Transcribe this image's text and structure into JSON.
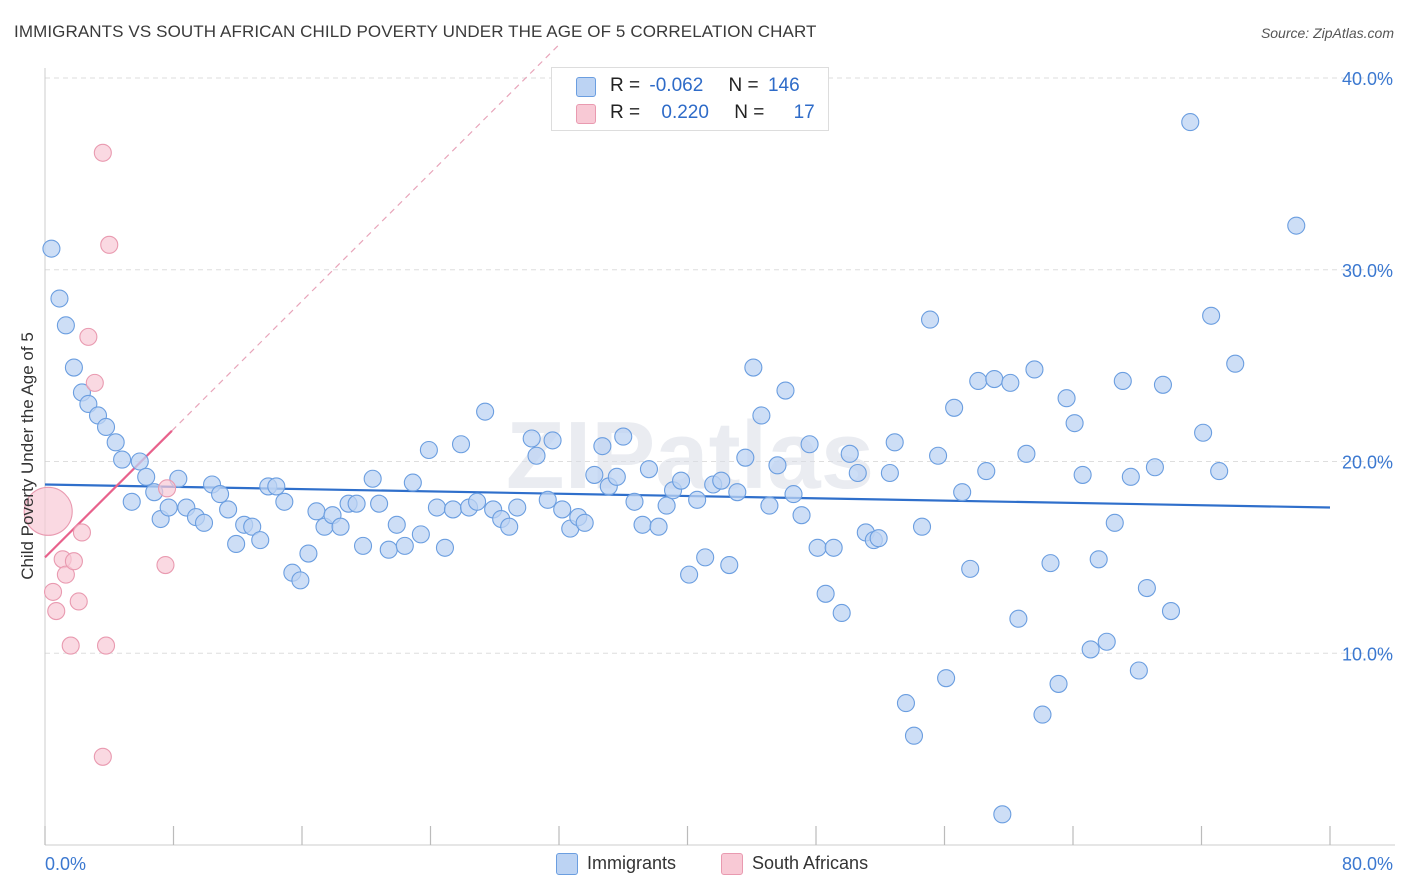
{
  "header": {
    "title": "IMMIGRANTS VS SOUTH AFRICAN CHILD POVERTY UNDER THE AGE OF 5 CORRELATION CHART",
    "source": "Source: ZipAtlas.com"
  },
  "legend": {
    "rows": [
      {
        "r_label": "R =",
        "r_value": "-0.062",
        "n_label": "N =",
        "n_value": "146"
      },
      {
        "r_label": "R =",
        "r_value": "0.220",
        "n_label": "N =",
        "n_value": "17"
      }
    ]
  },
  "bottom_legend": {
    "immigrants": "Immigrants",
    "south_africans": "South Africans"
  },
  "watermark": "ZIPatlas",
  "colors": {
    "immigrants_fill": "#bcd3f3",
    "immigrants_stroke": "#6b9ee0",
    "immigrants_line": "#2f6fcb",
    "sa_fill": "#f8c9d5",
    "sa_stroke": "#e99ab0",
    "sa_line": "#e8628c",
    "axis_text": "#3b78d0",
    "grid": "#dedede"
  },
  "chart_data": {
    "type": "scatter",
    "title": "IMMIGRANTS VS SOUTH AFRICAN CHILD POVERTY UNDER THE AGE OF 5 CORRELATION CHART",
    "xlabel": "",
    "ylabel": "Child Poverty Under the Age of 5",
    "xlim": [
      0,
      80
    ],
    "ylim": [
      0,
      40
    ],
    "x_tick_labels": [
      "0.0%",
      "80.0%"
    ],
    "y_tick_labels": [
      "10.0%",
      "20.0%",
      "30.0%",
      "40.0%"
    ],
    "y_ticks": [
      10,
      20,
      30,
      40
    ],
    "grid": true,
    "legend_placement": "top-center",
    "series": [
      {
        "name": "Immigrants",
        "R": -0.062,
        "N": 146,
        "trend": [
          [
            0,
            18.8
          ],
          [
            80,
            17.6
          ]
        ],
        "points": [
          [
            0.4,
            31.1
          ],
          [
            0.9,
            28.5
          ],
          [
            1.3,
            27.1
          ],
          [
            1.8,
            24.9
          ],
          [
            2.3,
            23.6
          ],
          [
            2.7,
            23.0
          ],
          [
            3.3,
            22.4
          ],
          [
            3.8,
            21.8
          ],
          [
            4.4,
            21.0
          ],
          [
            4.8,
            20.1
          ],
          [
            5.4,
            17.9
          ],
          [
            5.9,
            20.0
          ],
          [
            6.3,
            19.2
          ],
          [
            6.8,
            18.4
          ],
          [
            7.2,
            17.0
          ],
          [
            7.7,
            17.6
          ],
          [
            8.3,
            19.1
          ],
          [
            8.8,
            17.6
          ],
          [
            9.4,
            17.1
          ],
          [
            9.9,
            16.8
          ],
          [
            10.4,
            18.8
          ],
          [
            10.9,
            18.3
          ],
          [
            11.4,
            17.5
          ],
          [
            11.9,
            15.7
          ],
          [
            12.4,
            16.7
          ],
          [
            12.9,
            16.6
          ],
          [
            13.4,
            15.9
          ],
          [
            13.9,
            18.7
          ],
          [
            14.4,
            18.7
          ],
          [
            14.9,
            17.9
          ],
          [
            15.4,
            14.2
          ],
          [
            15.9,
            13.8
          ],
          [
            16.4,
            15.2
          ],
          [
            16.9,
            17.4
          ],
          [
            17.4,
            16.6
          ],
          [
            17.9,
            17.2
          ],
          [
            18.4,
            16.6
          ],
          [
            18.9,
            17.8
          ],
          [
            19.4,
            17.8
          ],
          [
            19.8,
            15.6
          ],
          [
            20.4,
            19.1
          ],
          [
            20.8,
            17.8
          ],
          [
            21.4,
            15.4
          ],
          [
            21.9,
            16.7
          ],
          [
            22.4,
            15.6
          ],
          [
            22.9,
            18.9
          ],
          [
            23.4,
            16.2
          ],
          [
            23.9,
            20.6
          ],
          [
            24.4,
            17.6
          ],
          [
            24.9,
            15.5
          ],
          [
            25.4,
            17.5
          ],
          [
            25.9,
            20.9
          ],
          [
            26.4,
            17.6
          ],
          [
            26.9,
            17.9
          ],
          [
            27.4,
            22.6
          ],
          [
            27.9,
            17.5
          ],
          [
            28.4,
            17.0
          ],
          [
            28.9,
            16.6
          ],
          [
            29.4,
            17.6
          ],
          [
            30.3,
            21.2
          ],
          [
            30.6,
            20.3
          ],
          [
            31.3,
            18.0
          ],
          [
            31.6,
            21.1
          ],
          [
            32.2,
            17.5
          ],
          [
            32.7,
            16.5
          ],
          [
            33.2,
            17.1
          ],
          [
            33.6,
            16.8
          ],
          [
            34.2,
            19.3
          ],
          [
            34.7,
            20.8
          ],
          [
            35.1,
            18.7
          ],
          [
            35.6,
            19.2
          ],
          [
            36.0,
            21.3
          ],
          [
            36.7,
            17.9
          ],
          [
            37.2,
            16.7
          ],
          [
            37.6,
            19.6
          ],
          [
            38.2,
            16.6
          ],
          [
            38.7,
            17.7
          ],
          [
            39.1,
            18.5
          ],
          [
            39.6,
            19.0
          ],
          [
            40.1,
            14.1
          ],
          [
            40.6,
            18.0
          ],
          [
            41.1,
            15.0
          ],
          [
            41.6,
            18.8
          ],
          [
            42.1,
            19.0
          ],
          [
            42.6,
            14.6
          ],
          [
            43.1,
            18.4
          ],
          [
            43.6,
            20.2
          ],
          [
            44.1,
            24.9
          ],
          [
            44.6,
            22.4
          ],
          [
            45.1,
            17.7
          ],
          [
            45.6,
            19.8
          ],
          [
            46.1,
            23.7
          ],
          [
            46.6,
            18.3
          ],
          [
            47.1,
            17.2
          ],
          [
            47.6,
            20.9
          ],
          [
            48.1,
            15.5
          ],
          [
            48.6,
            13.1
          ],
          [
            49.1,
            15.5
          ],
          [
            49.6,
            12.1
          ],
          [
            50.1,
            20.4
          ],
          [
            50.6,
            19.4
          ],
          [
            51.1,
            16.3
          ],
          [
            51.6,
            15.9
          ],
          [
            51.9,
            16.0
          ],
          [
            52.6,
            19.4
          ],
          [
            52.9,
            21.0
          ],
          [
            53.6,
            7.4
          ],
          [
            54.1,
            5.7
          ],
          [
            54.6,
            16.6
          ],
          [
            55.1,
            27.4
          ],
          [
            55.6,
            20.3
          ],
          [
            56.1,
            8.7
          ],
          [
            56.6,
            22.8
          ],
          [
            57.1,
            18.4
          ],
          [
            57.6,
            14.4
          ],
          [
            58.1,
            24.2
          ],
          [
            58.6,
            19.5
          ],
          [
            59.1,
            24.3
          ],
          [
            59.6,
            1.6
          ],
          [
            60.1,
            24.1
          ],
          [
            60.6,
            11.8
          ],
          [
            61.1,
            20.4
          ],
          [
            61.6,
            24.8
          ],
          [
            62.1,
            6.8
          ],
          [
            62.6,
            14.7
          ],
          [
            63.1,
            8.4
          ],
          [
            63.6,
            23.3
          ],
          [
            64.1,
            22.0
          ],
          [
            64.6,
            19.3
          ],
          [
            65.1,
            10.2
          ],
          [
            65.6,
            14.9
          ],
          [
            66.1,
            10.6
          ],
          [
            66.6,
            16.8
          ],
          [
            67.1,
            24.2
          ],
          [
            67.6,
            19.2
          ],
          [
            68.1,
            9.1
          ],
          [
            68.6,
            13.4
          ],
          [
            69.1,
            19.7
          ],
          [
            69.6,
            24.0
          ],
          [
            70.1,
            12.2
          ],
          [
            71.3,
            37.7
          ],
          [
            72.1,
            21.5
          ],
          [
            72.6,
            27.6
          ],
          [
            73.1,
            19.5
          ],
          [
            74.1,
            25.1
          ],
          [
            77.9,
            32.3
          ]
        ]
      },
      {
        "name": "South Africans",
        "R": 0.22,
        "N": 17,
        "trend": [
          [
            0,
            15.0
          ],
          [
            7.9,
            21.6
          ]
        ],
        "points": [
          [
            0.2,
            17.4
          ],
          [
            0.5,
            13.2
          ],
          [
            0.7,
            12.2
          ],
          [
            1.1,
            14.9
          ],
          [
            1.3,
            14.1
          ],
          [
            1.6,
            10.4
          ],
          [
            1.8,
            14.8
          ],
          [
            2.1,
            12.7
          ],
          [
            2.3,
            16.3
          ],
          [
            2.7,
            26.5
          ],
          [
            3.1,
            24.1
          ],
          [
            3.6,
            4.6
          ],
          [
            3.8,
            10.4
          ],
          [
            3.6,
            36.1
          ],
          [
            4.0,
            31.3
          ],
          [
            7.5,
            14.6
          ],
          [
            7.6,
            18.6
          ]
        ]
      }
    ]
  }
}
